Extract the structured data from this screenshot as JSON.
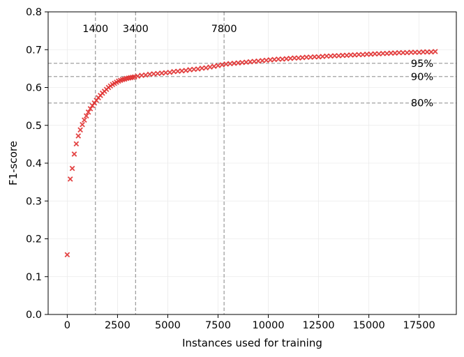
{
  "chart_data": {
    "type": "scatter",
    "xlabel": "Instances used for training",
    "ylabel": "F1-score",
    "xlim": [
      -950,
      19350
    ],
    "ylim": [
      0.0,
      0.8
    ],
    "xticks": [
      0,
      2500,
      5000,
      7500,
      10000,
      12500,
      15000,
      17500
    ],
    "xtick_labels": [
      "0",
      "2500",
      "5000",
      "7500",
      "10000",
      "12500",
      "15000",
      "17500"
    ],
    "yticks": [
      0.0,
      0.1,
      0.2,
      0.3,
      0.4,
      0.5,
      0.6,
      0.7,
      0.8
    ],
    "ytick_labels": [
      "0.0",
      "0.1",
      "0.2",
      "0.3",
      "0.4",
      "0.5",
      "0.6",
      "0.7",
      "0.8"
    ],
    "grid": true,
    "marker": "x",
    "colors": {
      "points": "#e03030",
      "ref_lines": "#a0a0a0",
      "grid": "#ebebeb"
    },
    "vlines": [
      {
        "x": 1400,
        "label": "1400"
      },
      {
        "x": 3400,
        "label": "3400"
      },
      {
        "x": 7800,
        "label": "7800"
      }
    ],
    "hlines": [
      {
        "y": 0.664,
        "label": "95%"
      },
      {
        "y": 0.629,
        "label": "90%"
      },
      {
        "y": 0.559,
        "label": "80%"
      }
    ],
    "series": [
      {
        "x": [
          0,
          150,
          250,
          350,
          450,
          550,
          650,
          750,
          850,
          950,
          1050,
          1150,
          1250,
          1350,
          1450,
          1550,
          1650,
          1750,
          1850,
          1950,
          2050,
          2150,
          2250,
          2350,
          2450,
          2550,
          2650,
          2750,
          2850,
          2950,
          3050,
          3150,
          3250,
          3350,
          3500,
          3700,
          3900,
          4100,
          4300,
          4500,
          4700,
          4900,
          5100,
          5300,
          5500,
          5700,
          5900,
          6100,
          6300,
          6500,
          6700,
          6900,
          7100,
          7300,
          7500,
          7700,
          7900,
          8100,
          8300,
          8500,
          8700,
          8900,
          9100,
          9300,
          9500,
          9700,
          9900,
          10100,
          10300,
          10500,
          10700,
          10900,
          11100,
          11300,
          11500,
          11700,
          11900,
          12100,
          12300,
          12500,
          12700,
          12900,
          13100,
          13300,
          13500,
          13700,
          13900,
          14100,
          14300,
          14500,
          14700,
          14900,
          15100,
          15300,
          15500,
          15700,
          15900,
          16100,
          16300,
          16500,
          16700,
          16900,
          17100,
          17300,
          17500,
          17700,
          17900,
          18100,
          18300
        ],
        "y": [
          0.158,
          0.358,
          0.386,
          0.424,
          0.451,
          0.472,
          0.488,
          0.502,
          0.514,
          0.525,
          0.535,
          0.544,
          0.552,
          0.559,
          0.566,
          0.573,
          0.579,
          0.585,
          0.59,
          0.595,
          0.6,
          0.604,
          0.608,
          0.611,
          0.614,
          0.617,
          0.619,
          0.621,
          0.622,
          0.624,
          0.625,
          0.626,
          0.627,
          0.628,
          0.63,
          0.632,
          0.633,
          0.635,
          0.636,
          0.637,
          0.638,
          0.639,
          0.64,
          0.642,
          0.643,
          0.644,
          0.645,
          0.647,
          0.648,
          0.649,
          0.651,
          0.652,
          0.654,
          0.656,
          0.658,
          0.66,
          0.662,
          0.663,
          0.664,
          0.665,
          0.666,
          0.667,
          0.668,
          0.669,
          0.67,
          0.671,
          0.672,
          0.673,
          0.674,
          0.675,
          0.675,
          0.676,
          0.677,
          0.678,
          0.678,
          0.679,
          0.68,
          0.68,
          0.681,
          0.681,
          0.682,
          0.683,
          0.683,
          0.684,
          0.684,
          0.685,
          0.685,
          0.686,
          0.686,
          0.687,
          0.687,
          0.688,
          0.688,
          0.689,
          0.689,
          0.69,
          0.69,
          0.691,
          0.691,
          0.692,
          0.692,
          0.692,
          0.693,
          0.693,
          0.693,
          0.694,
          0.694,
          0.694,
          0.695
        ]
      }
    ]
  }
}
